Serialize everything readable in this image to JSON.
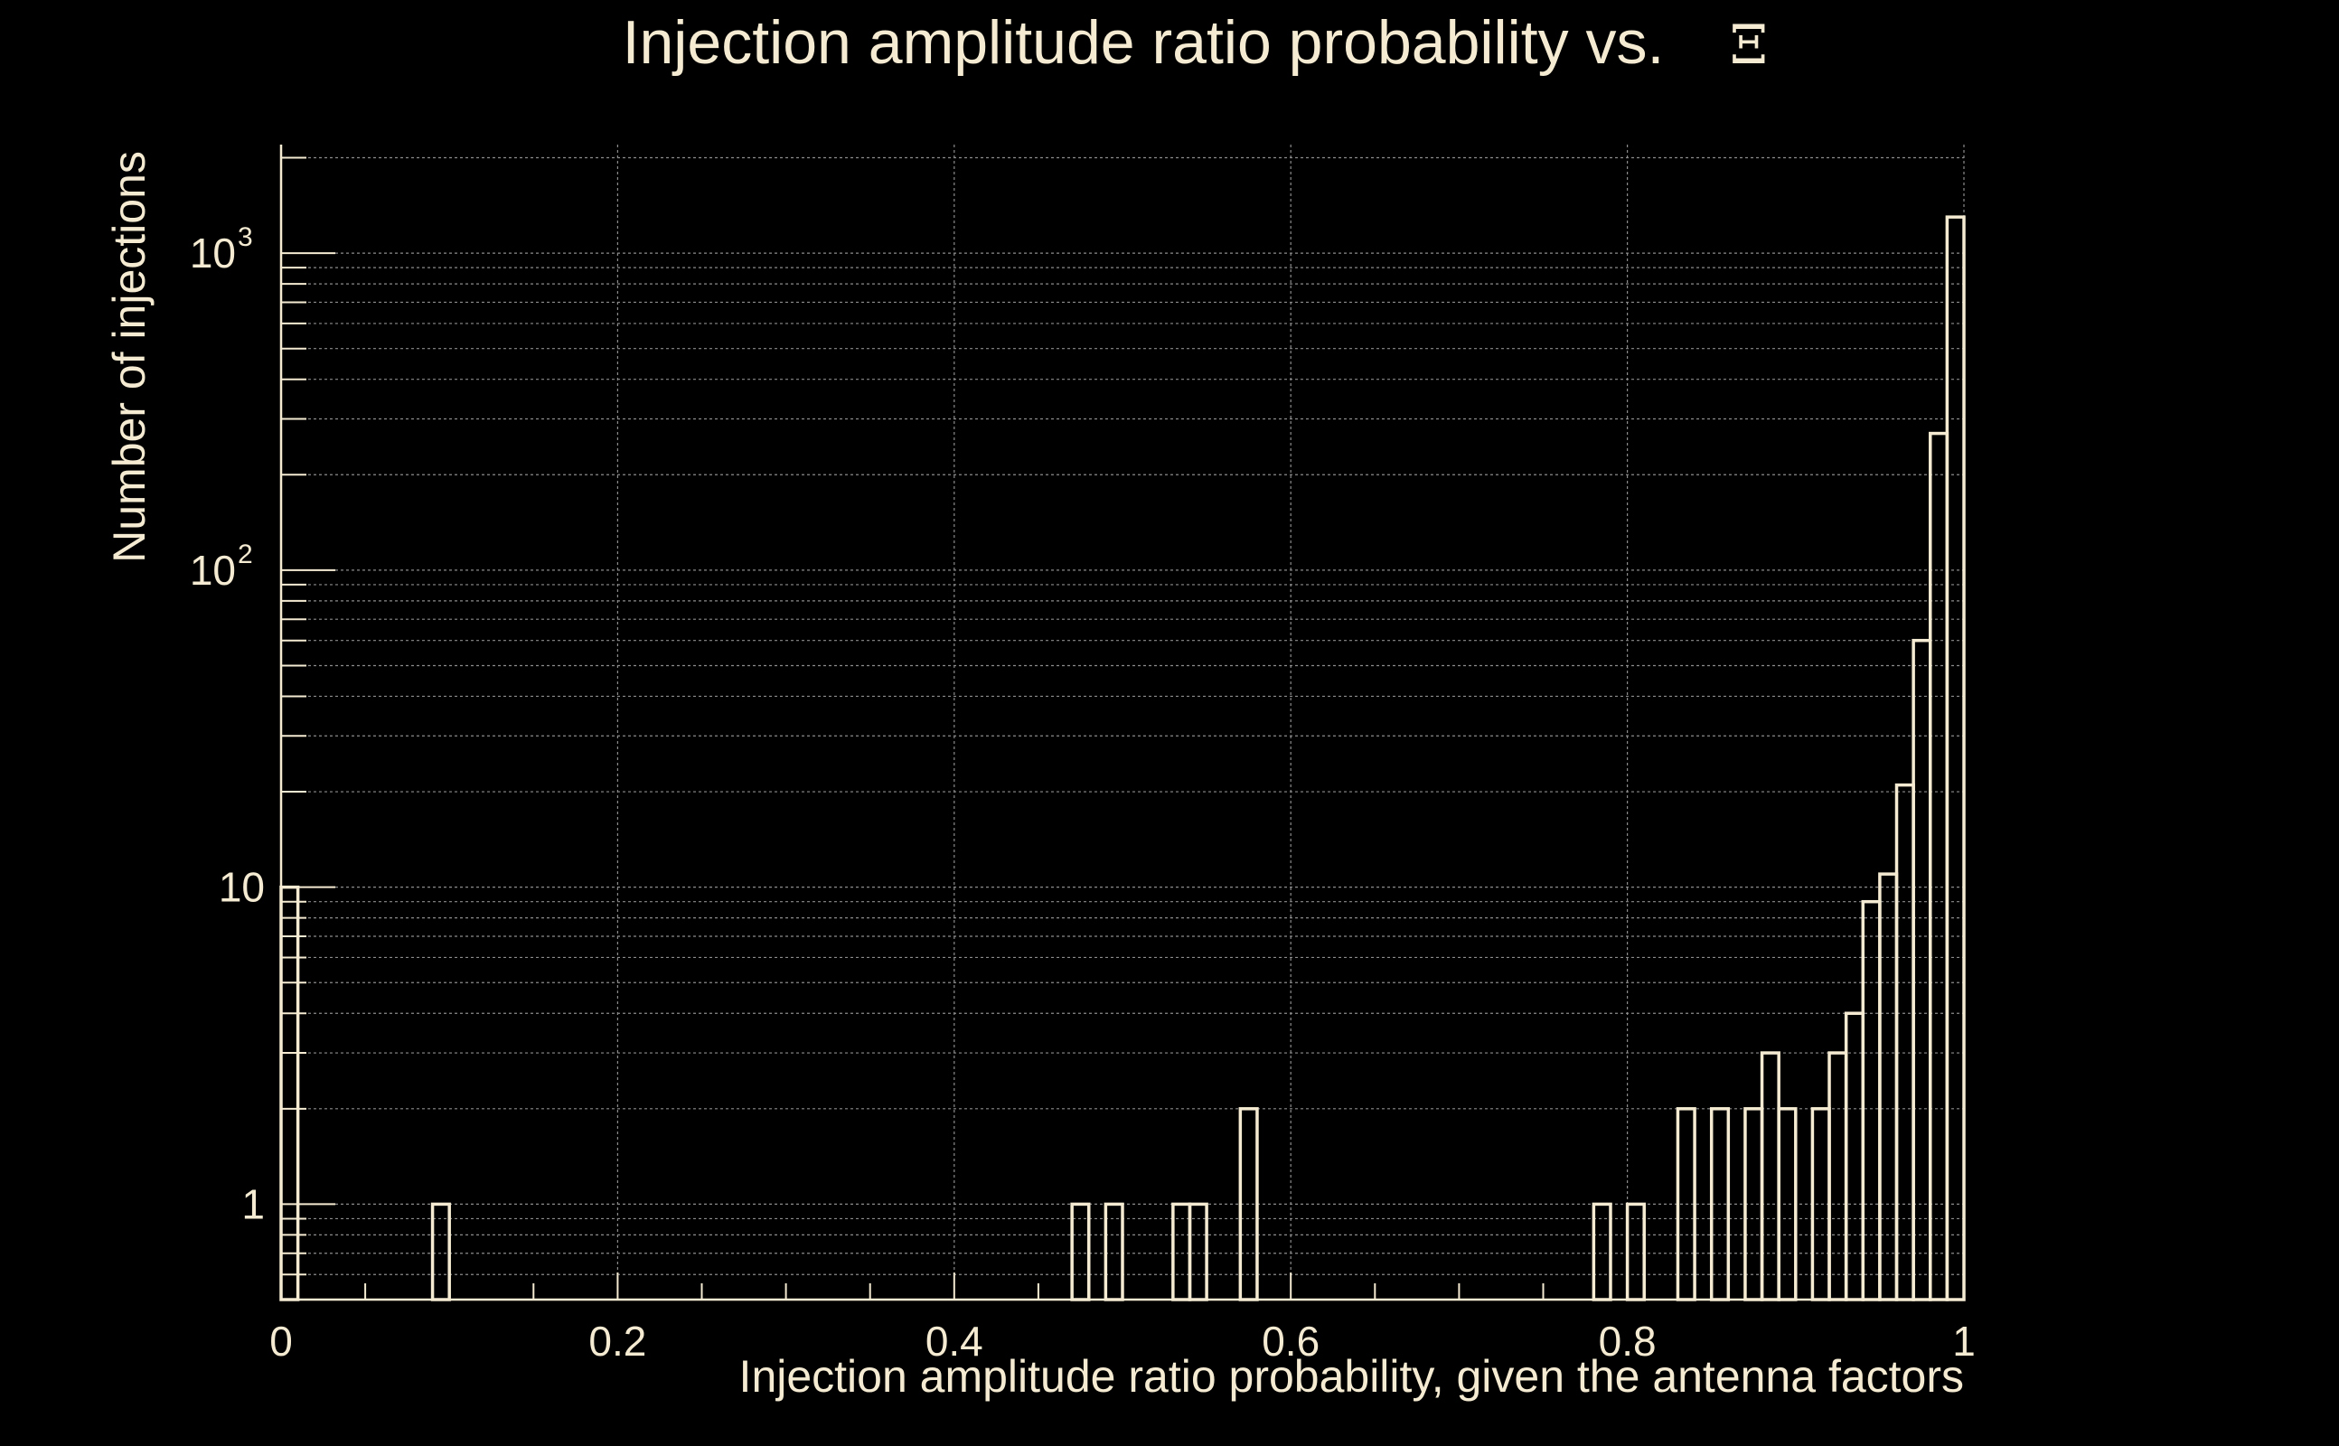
{
  "chart_data": {
    "type": "bar",
    "title": "Injection amplitude ratio probability vs.",
    "title_symbol": "Ξ",
    "xlabel": "Injection amplitude ratio probability, given the antenna factors",
    "ylabel": "Number of injections",
    "xlim": [
      0,
      1
    ],
    "ylim": [
      0.5,
      2200
    ],
    "y_scale": "log",
    "grid": true,
    "colors": {
      "background": "#000000",
      "foreground": "#f5ebd2",
      "grid": "#8c8c8c"
    },
    "x_ticks": [
      {
        "value": 0,
        "label": "0"
      },
      {
        "value": 0.2,
        "label": "0.2"
      },
      {
        "value": 0.4,
        "label": "0.4"
      },
      {
        "value": 0.6,
        "label": "0.6"
      },
      {
        "value": 0.8,
        "label": "0.8"
      },
      {
        "value": 1,
        "label": "1"
      }
    ],
    "y_ticks": [
      {
        "value": 1,
        "label": "1",
        "exp": ""
      },
      {
        "value": 10,
        "label": "10",
        "exp": ""
      },
      {
        "value": 100,
        "label": "10",
        "exp": "2"
      },
      {
        "value": 1000,
        "label": "10",
        "exp": "3"
      }
    ],
    "bin_width": 0.01,
    "bins": [
      {
        "x": 0.0,
        "count": 10
      },
      {
        "x": 0.09,
        "count": 1
      },
      {
        "x": 0.47,
        "count": 1
      },
      {
        "x": 0.49,
        "count": 1
      },
      {
        "x": 0.53,
        "count": 1
      },
      {
        "x": 0.54,
        "count": 1
      },
      {
        "x": 0.57,
        "count": 2
      },
      {
        "x": 0.78,
        "count": 1
      },
      {
        "x": 0.8,
        "count": 1
      },
      {
        "x": 0.83,
        "count": 2
      },
      {
        "x": 0.85,
        "count": 2
      },
      {
        "x": 0.87,
        "count": 2
      },
      {
        "x": 0.88,
        "count": 3
      },
      {
        "x": 0.89,
        "count": 2
      },
      {
        "x": 0.91,
        "count": 2
      },
      {
        "x": 0.92,
        "count": 3
      },
      {
        "x": 0.93,
        "count": 4
      },
      {
        "x": 0.94,
        "count": 9
      },
      {
        "x": 0.95,
        "count": 11
      },
      {
        "x": 0.96,
        "count": 21
      },
      {
        "x": 0.97,
        "count": 60
      },
      {
        "x": 0.98,
        "count": 270
      },
      {
        "x": 0.99,
        "count": 1300
      }
    ]
  }
}
